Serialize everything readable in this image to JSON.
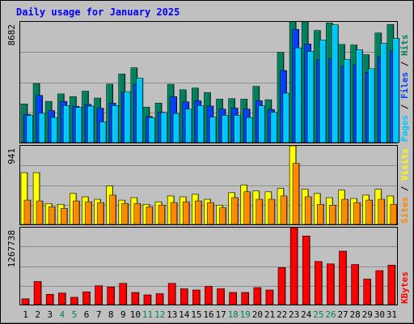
{
  "chart_data": {
    "type": "bar",
    "title": "Daily usage for January 2025",
    "categories": [
      "1",
      "2",
      "3",
      "4",
      "5",
      "6",
      "7",
      "8",
      "9",
      "10",
      "11",
      "12",
      "13",
      "14",
      "15",
      "16",
      "17",
      "18",
      "19",
      "20",
      "21",
      "22",
      "23",
      "24",
      "25",
      "26",
      "27",
      "28",
      "29",
      "30",
      "31"
    ],
    "weekend_days": [
      "4",
      "5",
      "11",
      "12",
      "18",
      "19",
      "25",
      "26"
    ],
    "colors": {
      "hits": "#00805c",
      "files": "#0040ff",
      "pages": "#00c8ff",
      "visits": "#ff8800",
      "sites": "#ffff00",
      "kbytes": "#ff0000",
      "weekday_label": "#000000",
      "weekend_label": "#00805c"
    },
    "panels": [
      {
        "name": "hits-files-pages",
        "ymax_label": "8682",
        "ymax": 8682,
        "right_labels": [
          {
            "text": "Pages",
            "color": "#00c8ff"
          },
          {
            "text": " / ",
            "color": "#000000"
          },
          {
            "text": "Files",
            "color": "#0040ff"
          },
          {
            "text": " / ",
            "color": "#000000"
          },
          {
            "text": "Hits",
            "color": "#00805c"
          }
        ],
        "series": [
          {
            "name": "Hits",
            "values": [
              2780,
              4250,
              2960,
              3500,
              3300,
              3700,
              3200,
              4200,
              4930,
              5380,
              2550,
              2840,
              4190,
              3800,
              3920,
              3600,
              3120,
              3160,
              3120,
              4040,
              3080,
              6490,
              8682,
              8680,
              8060,
              8600,
              7060,
              7020,
              6320,
              7880,
              8490
            ]
          },
          {
            "name": "Files",
            "values": [
              2020,
              3390,
              2290,
              2960,
              2610,
              2740,
              2470,
              2830,
              3610,
              4200,
              1880,
              2190,
              3300,
              2930,
              3000,
              2630,
              2410,
              2480,
              2410,
              3010,
              2380,
              5180,
              8140,
              7090,
              5970,
              6040,
              5480,
              5620,
              5050,
              6180,
              6590
            ]
          },
          {
            "name": "Pages",
            "values": [
              1950,
              2100,
              1800,
              2660,
              2520,
              2620,
              1480,
              2660,
              3660,
              4630,
              1780,
              2160,
              2090,
              2400,
              2660,
              1820,
              1960,
              1960,
              1800,
              2640,
              2170,
              3550,
              6810,
              6560,
              7380,
              8470,
              5980,
              6670,
              5310,
              7140,
              7490
            ]
          }
        ]
      },
      {
        "name": "visits-sites",
        "ymax_label": "941",
        "ymax": 941,
        "right_labels": [
          {
            "text": "Sites",
            "color": "#ff8800"
          },
          {
            "text": " / ",
            "color": "#000000"
          },
          {
            "text": "Visits",
            "color": "#ffff00"
          }
        ],
        "series": [
          {
            "name": "Visits",
            "values": [
              620,
              620,
              250,
              240,
              370,
              330,
              300,
              460,
              290,
              320,
              240,
              270,
              340,
              330,
              360,
              300,
              230,
              380,
              470,
              400,
              390,
              430,
              941,
              420,
              370,
              320,
              410,
              310,
              350,
              420,
              340
            ]
          },
          {
            "name": "Sites",
            "values": [
              290,
              280,
              210,
              190,
              280,
              270,
              260,
              350,
              250,
              250,
              210,
              230,
              260,
              270,
              280,
              260,
              200,
              320,
              390,
              300,
              300,
              340,
              730,
              330,
              240,
              230,
              300,
              260,
              290,
              300,
              240
            ]
          }
        ]
      },
      {
        "name": "kbytes",
        "ymax_label": "1267738",
        "ymax": 1267738,
        "right_labels": [
          {
            "text": "KBytes",
            "color": "#ff0000"
          }
        ],
        "series": [
          {
            "name": "KBytes",
            "values": [
              95000,
              380000,
              170000,
              190000,
              120000,
              210000,
              310000,
              290000,
              350000,
              200000,
              160000,
              180000,
              350000,
              260000,
              240000,
              300000,
              260000,
              200000,
              200000,
              280000,
              240000,
              610000,
              1267738,
              1130000,
              710000,
              670000,
              880000,
              660000,
              420000,
              560000,
              650000
            ]
          }
        ]
      }
    ]
  }
}
